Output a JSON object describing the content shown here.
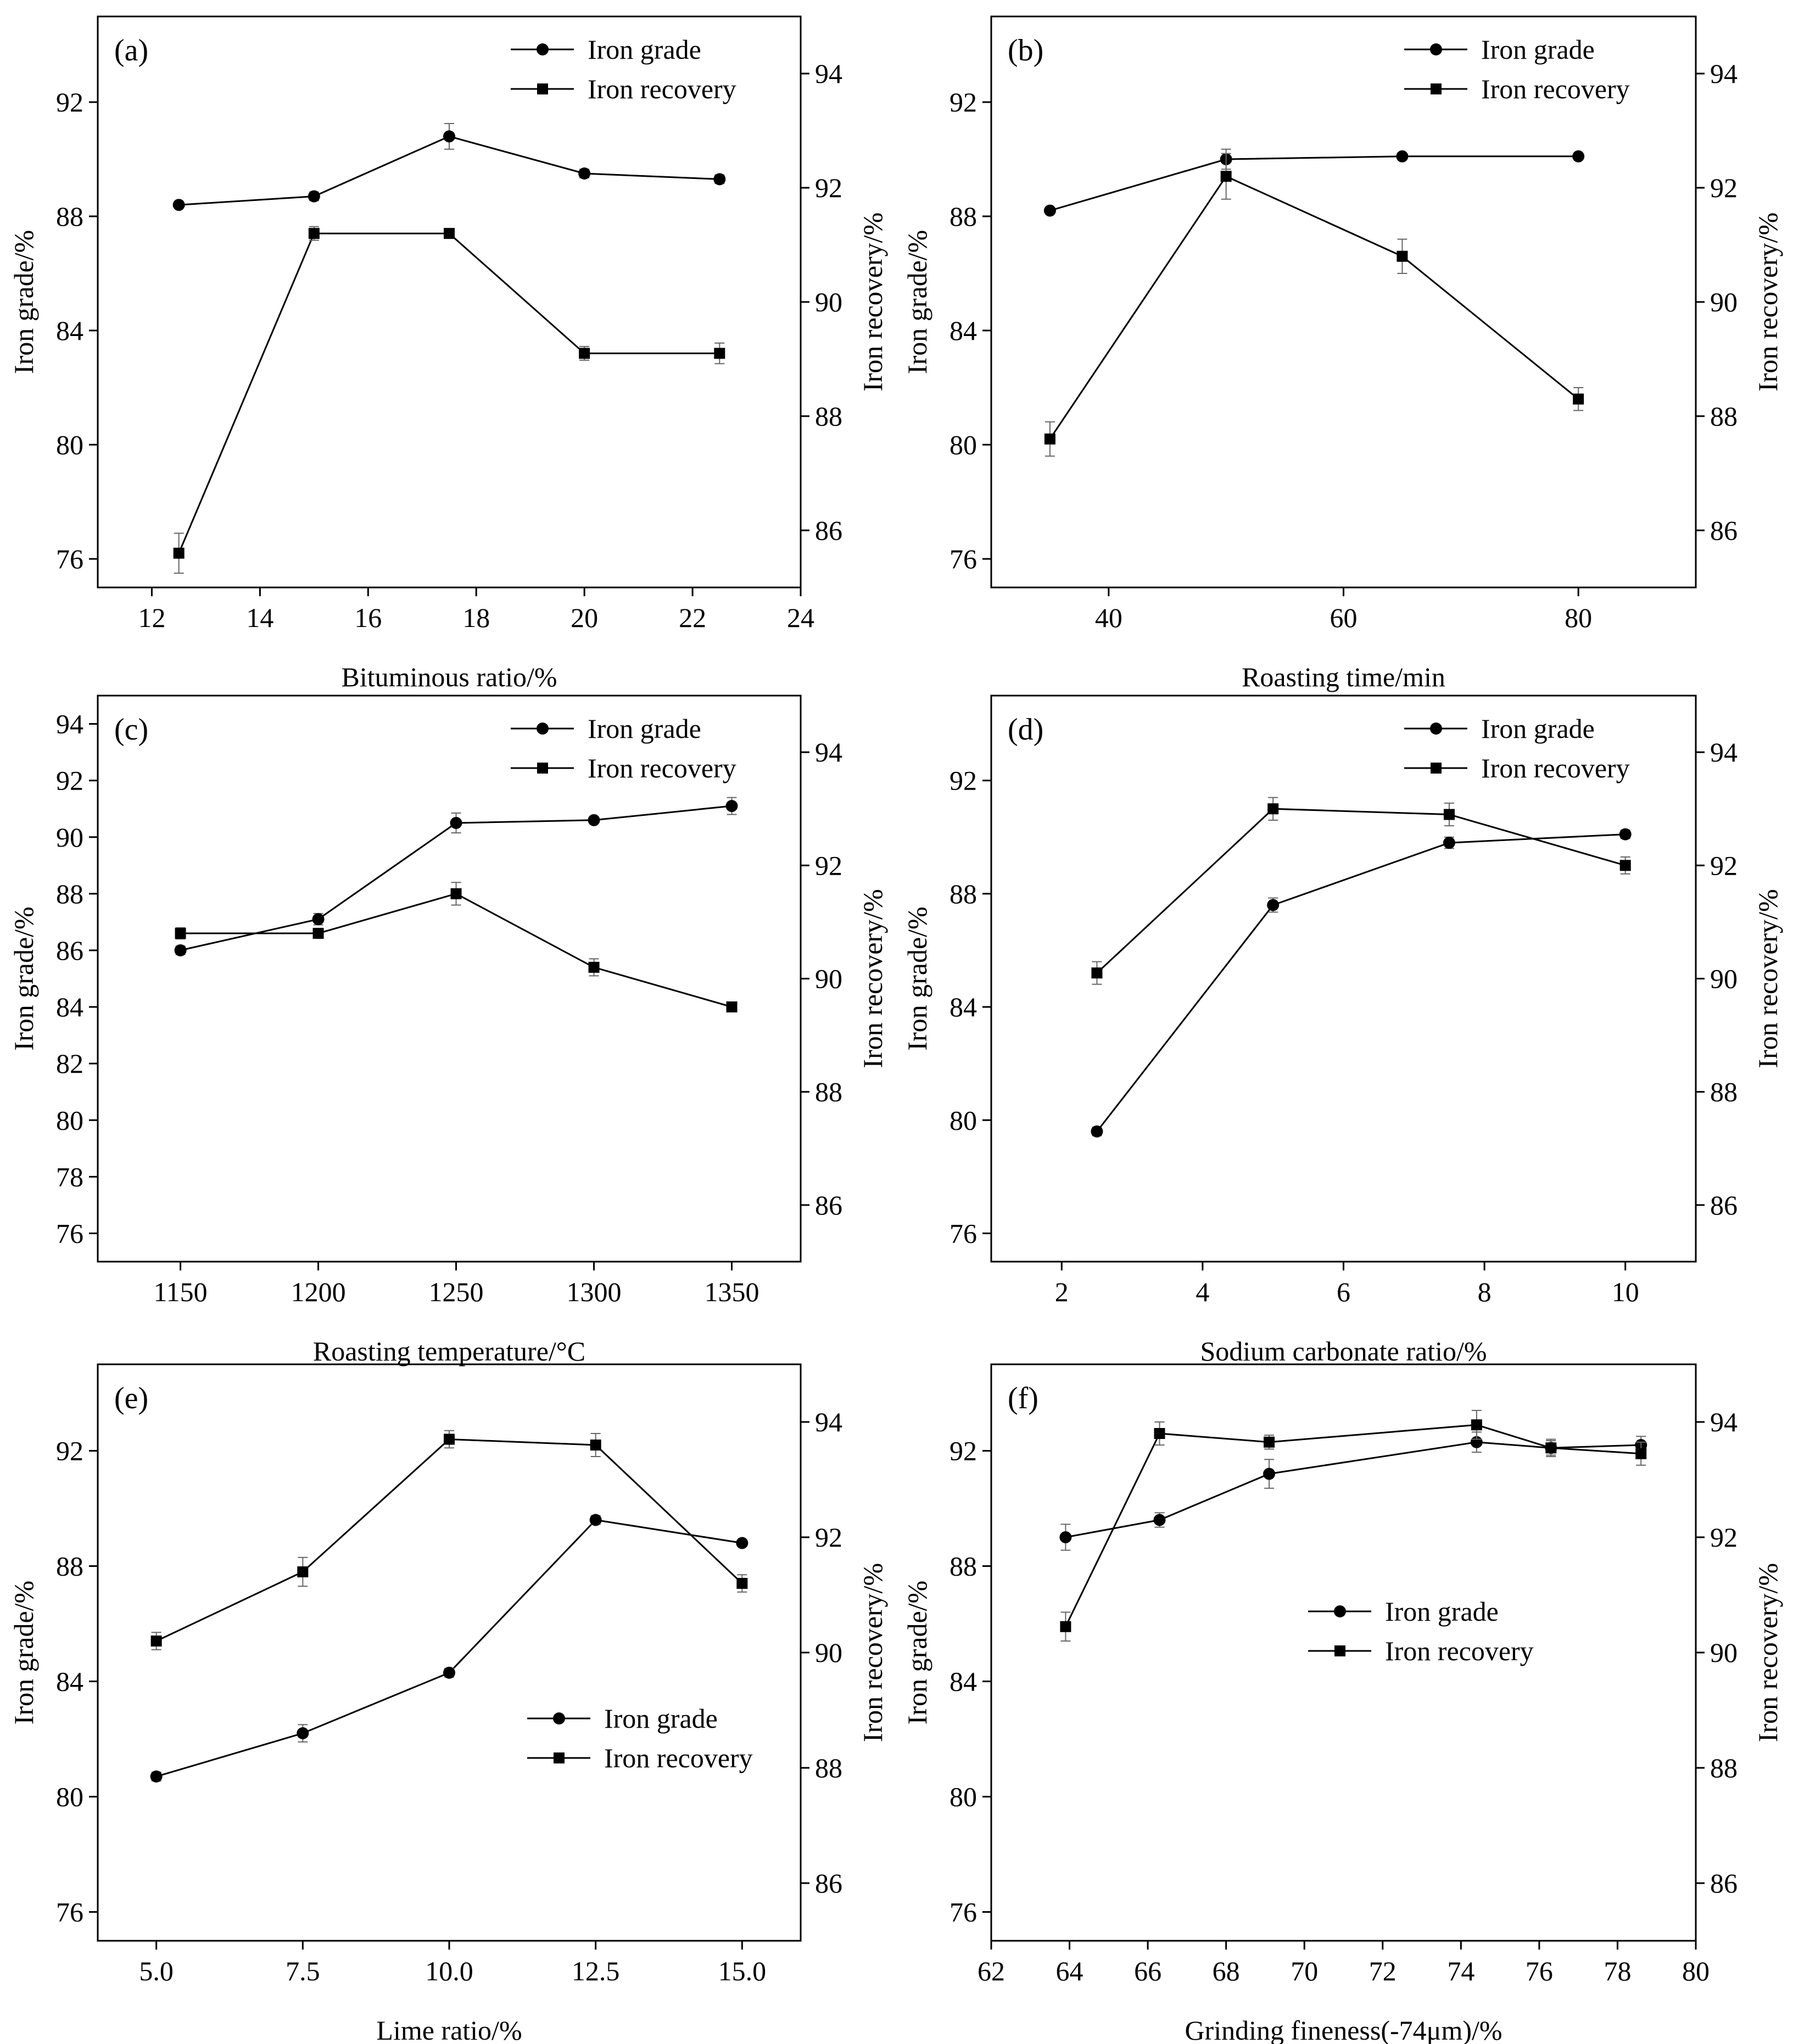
{
  "figure": {
    "legend_labels": [
      "Iron grade",
      "Iron recovery"
    ]
  },
  "chart_data": [
    {
      "panel": "(a)",
      "type": "line",
      "xlabel": "Bituminous ratio/%",
      "ylabel": "Iron grade/%",
      "ylabel_right": "Iron recovery/%",
      "xlim": [
        11,
        24
      ],
      "xticks": [
        12,
        14,
        16,
        18,
        20,
        22,
        24
      ],
      "xtick_labels": [
        "12",
        "14",
        "16",
        "18",
        "20",
        "22",
        "24"
      ],
      "ylim": [
        75,
        95
      ],
      "yticks": [
        76,
        80,
        84,
        88,
        92
      ],
      "ylim_right": [
        85,
        95
      ],
      "yticks_right": [
        86,
        88,
        90,
        92,
        94
      ],
      "legend_position": "top-right",
      "series": [
        {
          "name": "Iron grade",
          "axis": "left",
          "marker": "circle",
          "x": [
            12.5,
            15,
            17.5,
            20,
            22.5
          ],
          "y": [
            88.4,
            88.7,
            90.8,
            89.5,
            89.3
          ],
          "err": [
            0.1,
            0.15,
            0.45,
            0.15,
            0.15
          ]
        },
        {
          "name": "Iron recovery",
          "axis": "right",
          "marker": "square",
          "x": [
            12.5,
            15,
            17.5,
            20,
            22.5
          ],
          "y": [
            85.6,
            91.2,
            91.2,
            89.1,
            89.1
          ],
          "err": [
            0.35,
            0.12,
            0.05,
            0.12,
            0.18
          ]
        }
      ]
    },
    {
      "panel": "(b)",
      "type": "line",
      "xlabel": "Roasting time/min",
      "ylabel": "Iron grade/%",
      "ylabel_right": "Iron recovery/%",
      "xlim": [
        30,
        90
      ],
      "xticks": [
        40,
        60,
        80
      ],
      "xtick_labels": [
        "40",
        "60",
        "80"
      ],
      "ylim": [
        75,
        95
      ],
      "yticks": [
        76,
        80,
        84,
        88,
        92
      ],
      "ylim_right": [
        85,
        95
      ],
      "yticks_right": [
        86,
        88,
        90,
        92,
        94
      ],
      "legend_position": "top-right",
      "series": [
        {
          "name": "Iron grade",
          "axis": "left",
          "marker": "circle",
          "x": [
            35,
            50,
            65,
            80
          ],
          "y": [
            88.2,
            90.0,
            90.1,
            90.1
          ],
          "err": [
            0.1,
            0.35,
            0.1,
            0.1
          ]
        },
        {
          "name": "Iron recovery",
          "axis": "right",
          "marker": "square",
          "x": [
            35,
            50,
            65,
            80
          ],
          "y": [
            87.6,
            92.2,
            90.8,
            88.3
          ],
          "err": [
            0.3,
            0.4,
            0.3,
            0.2
          ]
        }
      ]
    },
    {
      "panel": "(c)",
      "type": "line",
      "xlabel": "Roasting temperature/°C",
      "ylabel": "Iron grade/%",
      "ylabel_right": "Iron recovery/%",
      "xlim": [
        1120,
        1375
      ],
      "xticks": [
        1150,
        1200,
        1250,
        1300,
        1350
      ],
      "xtick_labels": [
        "1150",
        "1200",
        "1250",
        "1300",
        "1350"
      ],
      "ylim": [
        75,
        95
      ],
      "yticks": [
        76,
        78,
        80,
        82,
        84,
        86,
        88,
        90,
        92,
        94
      ],
      "ylim_right": [
        85,
        95
      ],
      "yticks_right": [
        86,
        88,
        90,
        92,
        94
      ],
      "legend_position": "top-right",
      "series": [
        {
          "name": "Iron grade",
          "axis": "left",
          "marker": "circle",
          "x": [
            1150,
            1200,
            1250,
            1300,
            1350
          ],
          "y": [
            86.0,
            87.1,
            90.5,
            90.6,
            91.1
          ],
          "err": [
            0.15,
            0.2,
            0.35,
            0.1,
            0.3
          ]
        },
        {
          "name": "Iron recovery",
          "axis": "right",
          "marker": "square",
          "x": [
            1150,
            1200,
            1250,
            1300,
            1350
          ],
          "y": [
            90.8,
            90.8,
            91.5,
            90.2,
            89.5
          ],
          "err": [
            0.1,
            0.05,
            0.2,
            0.15,
            0.05
          ]
        }
      ]
    },
    {
      "panel": "(d)",
      "type": "line",
      "xlabel": "Sodium carbonate ratio/%",
      "ylabel": "Iron grade/%",
      "ylabel_right": "Iron recovery/%",
      "xlim": [
        1,
        11
      ],
      "xticks": [
        2,
        4,
        6,
        8,
        10
      ],
      "xtick_labels": [
        "2",
        "4",
        "6",
        "8",
        "10"
      ],
      "ylim": [
        75,
        95
      ],
      "yticks": [
        76,
        80,
        84,
        88,
        92
      ],
      "ylim_right": [
        85,
        95
      ],
      "yticks_right": [
        86,
        88,
        90,
        92,
        94
      ],
      "legend_position": "top-right",
      "series": [
        {
          "name": "Iron grade",
          "axis": "left",
          "marker": "circle",
          "x": [
            2.5,
            5,
            7.5,
            10
          ],
          "y": [
            79.6,
            87.6,
            89.8,
            90.1
          ],
          "err": [
            0.15,
            0.25,
            0.2,
            0.15
          ]
        },
        {
          "name": "Iron recovery",
          "axis": "right",
          "marker": "square",
          "x": [
            2.5,
            5,
            7.5,
            10
          ],
          "y": [
            90.1,
            93.0,
            92.9,
            92.0
          ],
          "err": [
            0.2,
            0.2,
            0.2,
            0.15
          ]
        }
      ]
    },
    {
      "panel": "(e)",
      "type": "line",
      "xlabel": "Lime ratio/%",
      "ylabel": "Iron grade/%",
      "ylabel_right": "Iron recovery/%",
      "xlim": [
        4,
        16
      ],
      "xticks": [
        5,
        7.5,
        10,
        12.5,
        15
      ],
      "xtick_labels": [
        "5.0",
        "7.5",
        "10.0",
        "12.5",
        "15.0"
      ],
      "ylim": [
        75,
        95
      ],
      "yticks": [
        76,
        80,
        84,
        88,
        92
      ],
      "ylim_right": [
        85,
        95
      ],
      "yticks_right": [
        86,
        88,
        90,
        92,
        94
      ],
      "legend_position": "bottom-right",
      "series": [
        {
          "name": "Iron grade",
          "axis": "left",
          "marker": "circle",
          "x": [
            5,
            7.5,
            10,
            12.5,
            15
          ],
          "y": [
            80.7,
            82.2,
            84.3,
            89.6,
            88.8
          ],
          "err": [
            0.15,
            0.3,
            0.15,
            0.15,
            0.1
          ]
        },
        {
          "name": "Iron recovery",
          "axis": "right",
          "marker": "square",
          "x": [
            5,
            7.5,
            10,
            12.5,
            15
          ],
          "y": [
            90.2,
            91.4,
            93.7,
            93.6,
            91.2
          ],
          "err": [
            0.15,
            0.25,
            0.15,
            0.2,
            0.15
          ]
        }
      ]
    },
    {
      "panel": "(f)",
      "type": "line",
      "xlabel": "Grinding fineness(-74μm)/%",
      "ylabel": "Iron grade/%",
      "ylabel_right": "Iron recovery/%",
      "xlim": [
        62,
        80
      ],
      "xticks": [
        62,
        64,
        66,
        68,
        70,
        72,
        74,
        76,
        78,
        80
      ],
      "xtick_labels": [
        "62",
        "64",
        "66",
        "68",
        "70",
        "72",
        "74",
        "76",
        "78",
        "80"
      ],
      "ylim": [
        75,
        95
      ],
      "yticks": [
        76,
        80,
        84,
        88,
        92
      ],
      "ylim_right": [
        85,
        95
      ],
      "yticks_right": [
        86,
        88,
        90,
        92,
        94
      ],
      "legend_position": "center-right",
      "series": [
        {
          "name": "Iron grade",
          "axis": "left",
          "marker": "circle",
          "x": [
            63.9,
            66.3,
            69.1,
            74.4,
            76.3,
            78.6
          ],
          "y": [
            89.0,
            89.6,
            91.2,
            92.3,
            92.1,
            92.2
          ],
          "err": [
            0.45,
            0.25,
            0.5,
            0.35,
            0.25,
            0.3
          ]
        },
        {
          "name": "Iron recovery",
          "axis": "right",
          "marker": "square",
          "x": [
            63.9,
            66.3,
            69.1,
            74.4,
            76.3,
            78.6
          ],
          "y": [
            90.45,
            93.8,
            93.65,
            93.95,
            93.55,
            93.45
          ],
          "err": [
            0.25,
            0.2,
            0.12,
            0.25,
            0.15,
            0.2
          ]
        }
      ]
    }
  ]
}
